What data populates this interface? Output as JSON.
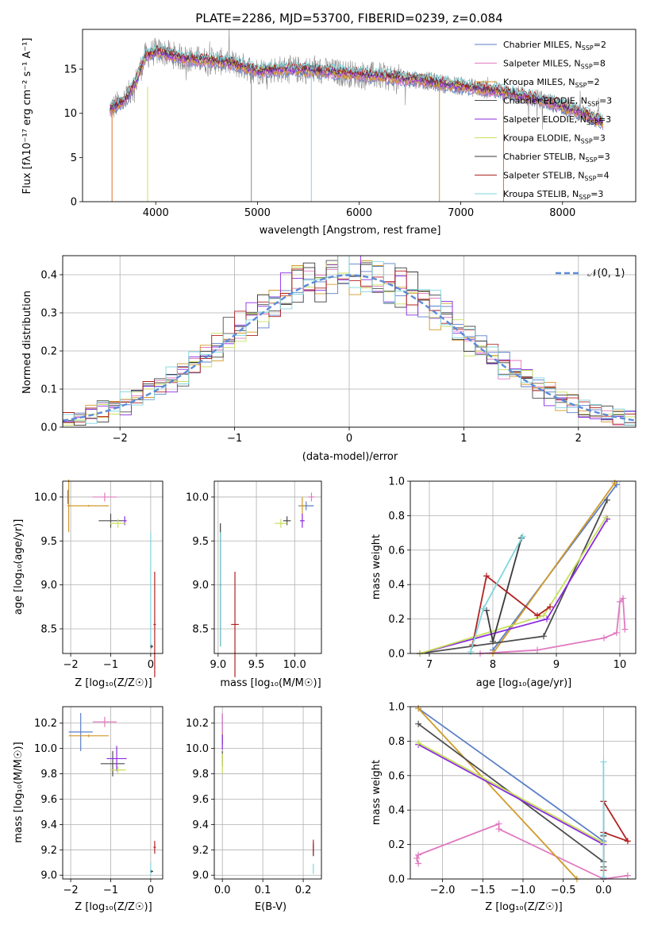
{
  "title": "PLATE=2286, MJD=53700, FIBERID=0239, z=0.084",
  "series_colors": [
    "#5b7fc7",
    "#e07ac0",
    "#d19a2a",
    "#4d4d4d",
    "#8a2be2",
    "#c8e05a",
    "#3a3a3a",
    "#b22222",
    "#7fd6de"
  ],
  "chart_data": [
    {
      "type": "line",
      "id": "spectrum",
      "xlabel": "wavelength [Angstrom, rest frame]",
      "ylabel": "Flux [fλ10⁻¹⁷ erg cm⁻² s⁻¹ A⁻¹]",
      "xlim": [
        3280,
        8720
      ],
      "ylim": [
        0,
        19.5
      ],
      "xticks": [
        "4000",
        "5000",
        "6000",
        "7000",
        "8000"
      ],
      "xtick_values": [
        4000,
        5000,
        6000,
        7000,
        8000
      ],
      "yticks": [
        "0",
        "5",
        "10",
        "15"
      ],
      "ytick_values": [
        0,
        5,
        10,
        15
      ],
      "continuum_x": [
        3550,
        3700,
        3800,
        3900,
        4000,
        4100,
        4200,
        4300,
        4500,
        4700,
        4900,
        5000,
        5200,
        5500,
        5800,
        6000,
        6200,
        6400,
        6600,
        6800,
        7000,
        7200,
        7400,
        7600,
        7800,
        8000,
        8200,
        8400
      ],
      "continuum_y": [
        10.5,
        11.5,
        13.5,
        16.5,
        17,
        16.8,
        16.5,
        16.2,
        16,
        15.8,
        15.2,
        14.8,
        15,
        14.9,
        14.6,
        14.4,
        14.2,
        14.0,
        13.8,
        13.4,
        13.1,
        12.8,
        12.5,
        12.0,
        11.5,
        10.8,
        10.0,
        9.0
      ],
      "legend": [
        "Chabrier MILES, N_SSP=2",
        "Salpeter MILES, N_SSP=8",
        "Kroupa MILES, N_SSP=2",
        "Chabrier ELODIE, N_SSP=3",
        "Salpeter ELODIE, N_SSP=3",
        "Kroupa ELODIE, N_SSP=3",
        "Chabrier STELIB, N_SSP=3",
        "Salpeter STELIB, N_SSP=4",
        "Kroupa STELIB, N_SSP=3"
      ],
      "legend_display": [
        {
          "label": "Chabrier MILES, N",
          "sub": "SSP",
          "tail": "=2"
        },
        {
          "label": "Salpeter MILES, N",
          "sub": "SSP",
          "tail": "=8"
        },
        {
          "label": "Kroupa MILES, N",
          "sub": "SSP",
          "tail": "=2"
        },
        {
          "label": "Chabrier ELODIE, N",
          "sub": "SSP",
          "tail": "=3"
        },
        {
          "label": "Salpeter ELODIE, N",
          "sub": "SSP",
          "tail": "=3"
        },
        {
          "label": "Kroupa ELODIE, N",
          "sub": "SSP",
          "tail": "=3"
        },
        {
          "label": "Chabrier STELIB, N",
          "sub": "SSP",
          "tail": "=3"
        },
        {
          "label": "Salpeter STELIB, N",
          "sub": "SSP",
          "tail": "=4"
        },
        {
          "label": "Kroupa STELIB, N",
          "sub": "SSP",
          "tail": "=3"
        }
      ],
      "legend_position": "upper-right"
    },
    {
      "type": "line",
      "id": "residuals",
      "xlabel": "(data-model)/error",
      "ylabel": "Normed distribution",
      "xlim": [
        -2.5,
        2.5
      ],
      "ylim": [
        0,
        0.45
      ],
      "xticks": [
        "−2",
        "−1",
        "0",
        "1",
        "2"
      ],
      "xtick_values": [
        -2,
        -1,
        0,
        1,
        2
      ],
      "yticks": [
        "0.0",
        "0.1",
        "0.2",
        "0.3",
        "0.4"
      ],
      "ytick_values": [
        0,
        0.1,
        0.2,
        0.3,
        0.4
      ],
      "bin_width": 0.1,
      "gaussian_label": "𝒩(0, 1)",
      "grid": true
    },
    {
      "type": "scatter",
      "id": "age_vs_Z",
      "xlabel": "Z [log₁₀(Z/Z☉)]",
      "ylabel": "age  [log₁₀(age/yr)]",
      "xlim": [
        -2.2,
        0.3
      ],
      "ylim": [
        8.22,
        10.18
      ],
      "xticks": [
        "−2",
        "−1",
        "0"
      ],
      "xtick_values": [
        -2,
        -1,
        0
      ],
      "yticks": [
        "8.5",
        "9.0",
        "9.5",
        "10.0"
      ],
      "ytick_values": [
        8.5,
        9.0,
        9.5,
        10.0
      ],
      "grid": true,
      "points": [
        {
          "s": 0,
          "x": -2.07,
          "y": 10.0,
          "xerr": 0.02,
          "yerr": 0.08
        },
        {
          "s": 1,
          "x": -1.15,
          "y": 10.0,
          "xerr": 0.3,
          "yerr": 0.05
        },
        {
          "s": 2,
          "x": -2.05,
          "y": 9.9,
          "xerr": 0.04,
          "yerr": 0.3
        },
        {
          "s": 2,
          "x": -1.55,
          "y": 9.9,
          "xerr": 0.5,
          "yerr": 0.01
        },
        {
          "s": 3,
          "x": -1.0,
          "y": 9.73,
          "xerr": 0.3,
          "yerr": 0.08
        },
        {
          "s": 4,
          "x": -0.65,
          "y": 9.73,
          "xerr": 0.05,
          "yerr": 0.05
        },
        {
          "s": 5,
          "x": -0.82,
          "y": 9.7,
          "xerr": 0.2,
          "yerr": 0.05
        },
        {
          "s": 6,
          "x": 0.02,
          "y": 8.3,
          "xerr": 0.04,
          "yerr": 0.02
        },
        {
          "s": 7,
          "x": 0.1,
          "y": 8.55,
          "xerr": 0.03,
          "yerr": 0.6
        },
        {
          "s": 8,
          "x": 0.0,
          "y": 8.95,
          "xerr": 0.01,
          "yerr": 0.65
        }
      ]
    },
    {
      "type": "scatter",
      "id": "age_vs_mass",
      "xlabel": "mass [log₁₀(M/M☉)]",
      "ylabel": "",
      "xlim": [
        8.95,
        10.35
      ],
      "ylim": [
        8.22,
        10.18
      ],
      "xticks": [
        "9.0",
        "9.5",
        "10.0"
      ],
      "xtick_values": [
        9.0,
        9.5,
        10.0
      ],
      "yticks": [
        "8.5",
        "9.0",
        "9.5",
        "10.0"
      ],
      "ytick_values": [
        8.5,
        9.0,
        9.5,
        10.0
      ],
      "grid": true,
      "points": [
        {
          "s": 0,
          "x": 10.15,
          "y": 9.9,
          "xerr": 0.1,
          "yerr": 0.05
        },
        {
          "s": 1,
          "x": 10.22,
          "y": 10.0,
          "xerr": 0.04,
          "yerr": 0.05
        },
        {
          "s": 2,
          "x": 10.1,
          "y": 9.9,
          "xerr": 0.04,
          "yerr": 0.1
        },
        {
          "s": 3,
          "x": 9.9,
          "y": 9.73,
          "xerr": 0.05,
          "yerr": 0.05
        },
        {
          "s": 4,
          "x": 10.1,
          "y": 9.73,
          "xerr": 0.03,
          "yerr": 0.08
        },
        {
          "s": 5,
          "x": 9.82,
          "y": 9.7,
          "xerr": 0.08,
          "yerr": 0.05
        },
        {
          "s": 6,
          "x": 9.03,
          "y": 9.0,
          "xerr": 0.01,
          "yerr": 0.7
        },
        {
          "s": 7,
          "x": 9.22,
          "y": 8.55,
          "xerr": 0.05,
          "yerr": 0.6
        },
        {
          "s": 8,
          "x": 9.03,
          "y": 8.95,
          "xerr": 0.01,
          "yerr": 0.65
        }
      ]
    },
    {
      "type": "line",
      "id": "mass_weight_vs_age",
      "xlabel": "age  [log₁₀(age/yr)]",
      "ylabel": "mass weight",
      "xlim": [
        6.7,
        10.25
      ],
      "ylim": [
        0,
        1.0
      ],
      "xticks": [
        "7",
        "8",
        "9",
        "10"
      ],
      "xtick_values": [
        7,
        8,
        9,
        10
      ],
      "yticks": [
        "0.0",
        "0.2",
        "0.4",
        "0.6",
        "0.8",
        "1.0"
      ],
      "ytick_values": [
        0,
        0.2,
        0.4,
        0.6,
        0.8,
        1.0
      ],
      "grid": true,
      "series": [
        {
          "s": 0,
          "x": [
            8.0,
            9.95
          ],
          "y": [
            0.02,
            0.98
          ]
        },
        {
          "s": 1,
          "x": [
            7.8,
            8.7,
            9.75,
            9.95,
            10.0,
            10.05,
            10.08
          ],
          "y": [
            0.0,
            0.02,
            0.09,
            0.12,
            0.3,
            0.32,
            0.14
          ]
        },
        {
          "s": 2,
          "x": [
            8.0,
            9.92
          ],
          "y": [
            0.0,
            0.99
          ]
        },
        {
          "s": 3,
          "x": [
            6.85,
            8.8,
            9.8
          ],
          "y": [
            0.0,
            0.1,
            0.89
          ]
        },
        {
          "s": 4,
          "x": [
            6.85,
            8.85,
            9.8
          ],
          "y": [
            0.0,
            0.2,
            0.78
          ]
        },
        {
          "s": 5,
          "x": [
            6.85,
            8.8,
            9.78
          ],
          "y": [
            0.0,
            0.22,
            0.79
          ]
        },
        {
          "s": 6,
          "x": [
            7.9,
            8.0,
            8.45
          ],
          "y": [
            0.25,
            0.07,
            0.67
          ]
        },
        {
          "s": 7,
          "x": [
            7.68,
            7.9,
            8.7,
            8.9
          ],
          "y": [
            0.05,
            0.45,
            0.22,
            0.27
          ]
        },
        {
          "s": 8,
          "x": [
            7.65,
            7.85,
            8.47
          ],
          "y": [
            0.01,
            0.26,
            0.68
          ]
        }
      ]
    },
    {
      "type": "scatter",
      "id": "mass_vs_Z",
      "xlabel": "Z [log₁₀(Z/Z☉)]",
      "ylabel": "mass [log₁₀(M/M☉)]",
      "xlim": [
        -2.2,
        0.3
      ],
      "ylim": [
        8.97,
        10.33
      ],
      "xticks": [
        "−2",
        "−1",
        "0"
      ],
      "xtick_values": [
        -2,
        -1,
        0
      ],
      "yticks": [
        "9.0",
        "9.2",
        "9.4",
        "9.6",
        "9.8",
        "10.0",
        "10.2"
      ],
      "ytick_values": [
        9.0,
        9.2,
        9.4,
        9.6,
        9.8,
        10.0,
        10.2
      ],
      "grid": true,
      "points": [
        {
          "s": 0,
          "x": -1.75,
          "y": 10.13,
          "xerr": 0.3,
          "yerr": 0.15
        },
        {
          "s": 1,
          "x": -1.15,
          "y": 10.21,
          "xerr": 0.3,
          "yerr": 0.04
        },
        {
          "s": 2,
          "x": -1.55,
          "y": 10.1,
          "xerr": 0.5,
          "yerr": 0.01
        },
        {
          "s": 3,
          "x": -0.95,
          "y": 9.88,
          "xerr": 0.3,
          "yerr": 0.1
        },
        {
          "s": 4,
          "x": -0.85,
          "y": 9.92,
          "xerr": 0.25,
          "yerr": 0.1
        },
        {
          "s": 5,
          "x": -0.82,
          "y": 9.83,
          "xerr": 0.2,
          "yerr": 0.03
        },
        {
          "s": 6,
          "x": 0.02,
          "y": 9.03,
          "xerr": 0.04,
          "yerr": 0.01
        },
        {
          "s": 7,
          "x": 0.1,
          "y": 9.22,
          "xerr": 0.03,
          "yerr": 0.05
        },
        {
          "s": 8,
          "x": 0.0,
          "y": 9.05,
          "xerr": 0.01,
          "yerr": 0.05
        }
      ]
    },
    {
      "type": "scatter",
      "id": "mass_vs_ebv",
      "xlabel": "E(B-V)",
      "ylabel": "",
      "xlim": [
        -0.02,
        0.245
      ],
      "ylim": [
        8.97,
        10.33
      ],
      "xticks": [
        "0.0",
        "0.1",
        "0.2"
      ],
      "xtick_values": [
        0,
        0.1,
        0.2
      ],
      "yticks": [
        "9.0",
        "9.2",
        "9.4",
        "9.6",
        "9.8",
        "10.0",
        "10.2"
      ],
      "ytick_values": [
        9.0,
        9.2,
        9.4,
        9.6,
        9.8,
        10.0,
        10.2
      ],
      "grid": true,
      "points": [
        {
          "s": 0,
          "x": 0.0,
          "y": 10.15,
          "xerr": 0.001,
          "yerr": 0.12
        },
        {
          "s": 1,
          "x": 0.0,
          "y": 10.2,
          "xerr": 0.001,
          "yerr": 0.08
        },
        {
          "s": 2,
          "x": 0.0,
          "y": 10.08,
          "xerr": 0.001,
          "yerr": 0.04
        },
        {
          "s": 3,
          "x": 0.0,
          "y": 9.92,
          "xerr": 0.001,
          "yerr": 0.06
        },
        {
          "s": 4,
          "x": 0.0,
          "y": 10.05,
          "xerr": 0.001,
          "yerr": 0.06
        },
        {
          "s": 5,
          "x": 0.0,
          "y": 9.88,
          "xerr": 0.001,
          "yerr": 0.08
        },
        {
          "s": 6,
          "x": 0.225,
          "y": 9.2,
          "xerr": 0.001,
          "yerr": 0.05
        },
        {
          "s": 7,
          "x": 0.225,
          "y": 9.22,
          "xerr": 0.001,
          "yerr": 0.06
        },
        {
          "s": 8,
          "x": 0.225,
          "y": 9.05,
          "xerr": 0.001,
          "yerr": 0.04
        }
      ]
    },
    {
      "type": "line",
      "id": "mass_weight_vs_Z",
      "xlabel": "Z [log₁₀(Z/Z☉)]",
      "ylabel": "mass weight",
      "xlim": [
        -2.4,
        0.4
      ],
      "ylim": [
        0,
        1.0
      ],
      "xticks": [
        "−2.0",
        "−1.5",
        "−1.0",
        "−0.5",
        "0.0"
      ],
      "xtick_values": [
        -2.0,
        -1.5,
        -1.0,
        -0.5,
        0.0
      ],
      "yticks": [
        "0.0",
        "0.2",
        "0.4",
        "0.6",
        "0.8",
        "1.0"
      ],
      "ytick_values": [
        0,
        0.2,
        0.4,
        0.6,
        0.8,
        1.0
      ],
      "grid": true,
      "series": [
        {
          "s": 0,
          "x": [
            -2.3,
            0.0
          ],
          "y": [
            0.99,
            0.22
          ]
        },
        {
          "s": 1,
          "x": [
            -2.3,
            -2.32,
            -2.3,
            -1.3,
            -1.3,
            0.0,
            0.3
          ],
          "y": [
            0.09,
            0.12,
            0.14,
            0.32,
            0.29,
            0.0,
            0.02
          ]
        },
        {
          "s": 2,
          "x": [
            -2.3,
            -0.33
          ],
          "y": [
            0.99,
            0.0
          ]
        },
        {
          "s": 3,
          "x": [
            -2.3,
            0.0,
            0.0
          ],
          "y": [
            0.9,
            0.1,
            0.0
          ]
        },
        {
          "s": 4,
          "x": [
            -2.3,
            0.0
          ],
          "y": [
            0.78,
            0.2
          ]
        },
        {
          "s": 5,
          "x": [
            -2.3,
            0.0
          ],
          "y": [
            0.79,
            0.21
          ]
        },
        {
          "s": 6,
          "x": [
            0.0,
            0.0,
            0.0
          ],
          "y": [
            0.25,
            0.07,
            0.45
          ]
        },
        {
          "s": 7,
          "x": [
            0.0,
            0.0,
            0.3,
            0.0
          ],
          "y": [
            0.05,
            0.27,
            0.22,
            0.45
          ]
        },
        {
          "s": 8,
          "x": [
            0.0,
            0.0,
            0.0
          ],
          "y": [
            0.01,
            0.26,
            0.68
          ]
        }
      ]
    }
  ]
}
